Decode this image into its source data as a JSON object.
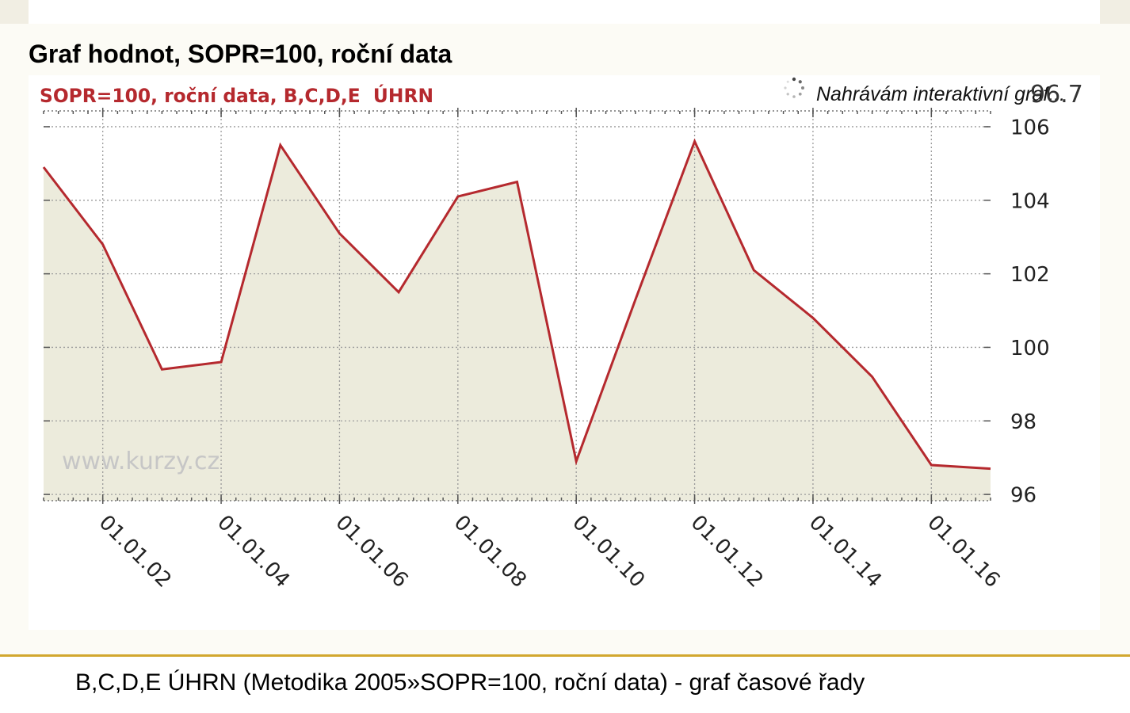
{
  "page": {
    "section_title": "Graf hodnot, SOPR=100, roční data",
    "caption": "B,C,D,E ÚHRN (Metodika 2005»SOPR=100, roční data) - graf časové řady"
  },
  "loading": {
    "text": "Nahrávám interaktivní graf...",
    "icon": "loading-spinner-icon"
  },
  "watermark": "www.kurzy.cz",
  "colors": {
    "chart_line": "#b5292e",
    "chart_area": "#ecebdc",
    "chart_title": "#b5292e",
    "gridline": "#9c9c9c",
    "axis_text": "#222222",
    "watermark": "#c6c6c6",
    "accent_rule": "#d2a72e"
  },
  "chart_data": {
    "type": "area",
    "title": "SOPR=100, roční data, B,C,D,E  ÚHRN",
    "x": [
      "01.01.01",
      "01.01.02",
      "01.01.03",
      "01.01.04",
      "01.01.05",
      "01.01.06",
      "01.01.07",
      "01.01.08",
      "01.01.09",
      "01.01.10",
      "01.01.11",
      "01.01.12",
      "01.01.13",
      "01.01.14",
      "01.01.15",
      "01.01.16",
      "01.01.17"
    ],
    "series": [
      {
        "values": [
          104.9,
          102.8,
          99.4,
          99.6,
          105.5,
          103.1,
          101.5,
          104.1,
          104.5,
          96.9,
          101.3,
          105.6,
          102.1,
          100.8,
          99.2,
          96.8,
          96.7
        ]
      }
    ],
    "xticks": [
      "01.01.02",
      "01.01.04",
      "01.01.06",
      "01.01.08",
      "01.01.10",
      "01.01.12",
      "01.01.14",
      "01.01.16"
    ],
    "yticks": [
      96,
      98,
      100,
      102,
      104,
      106
    ],
    "ylim": [
      95.83,
      106.43
    ],
    "y_axis_side": "right",
    "grid": true,
    "legend": "none",
    "last_value_label": "96.7"
  }
}
